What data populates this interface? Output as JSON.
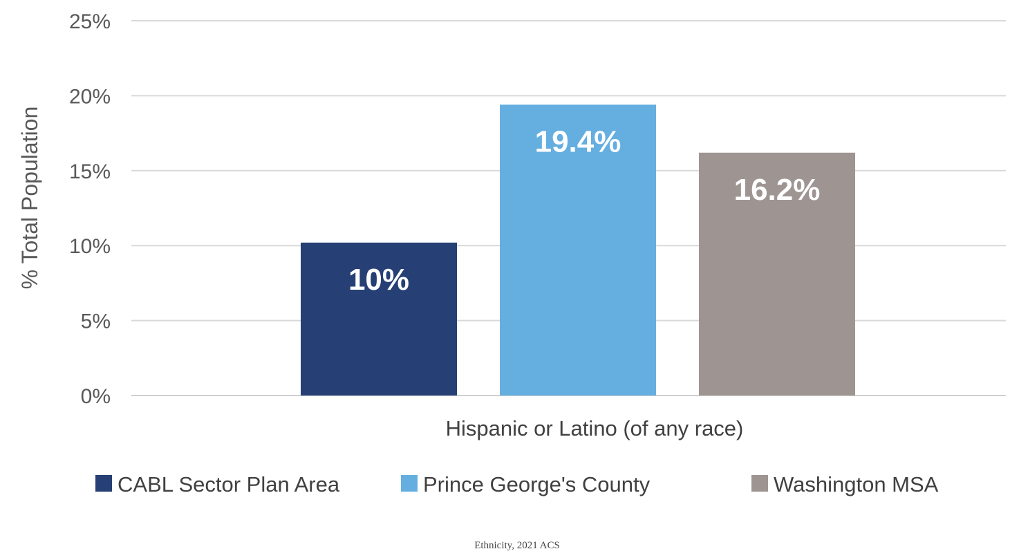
{
  "chart_data": {
    "type": "bar",
    "categories": [
      "Hispanic or Latino (of any race)"
    ],
    "series": [
      {
        "name": "CABL Sector Plan Area",
        "values": [
          10.2
        ],
        "label": "10%",
        "color": "#263f74"
      },
      {
        "name": "Prince George's County",
        "values": [
          19.4
        ],
        "label": "19.4%",
        "color": "#65aee0"
      },
      {
        "name": "Washington MSA",
        "values": [
          16.2
        ],
        "label": "16.2%",
        "color": "#9e9593"
      }
    ],
    "ylabel": "% Total Population",
    "xlabel": "",
    "ylim": [
      0,
      25
    ],
    "yticks": [
      0,
      5,
      10,
      15,
      20,
      25
    ],
    "ytick_labels": [
      "0%",
      "5%",
      "10%",
      "15%",
      "20%",
      "25%"
    ],
    "grid": true,
    "legend_position": "bottom",
    "caption": "Ethnicity, 2021 ACS"
  }
}
